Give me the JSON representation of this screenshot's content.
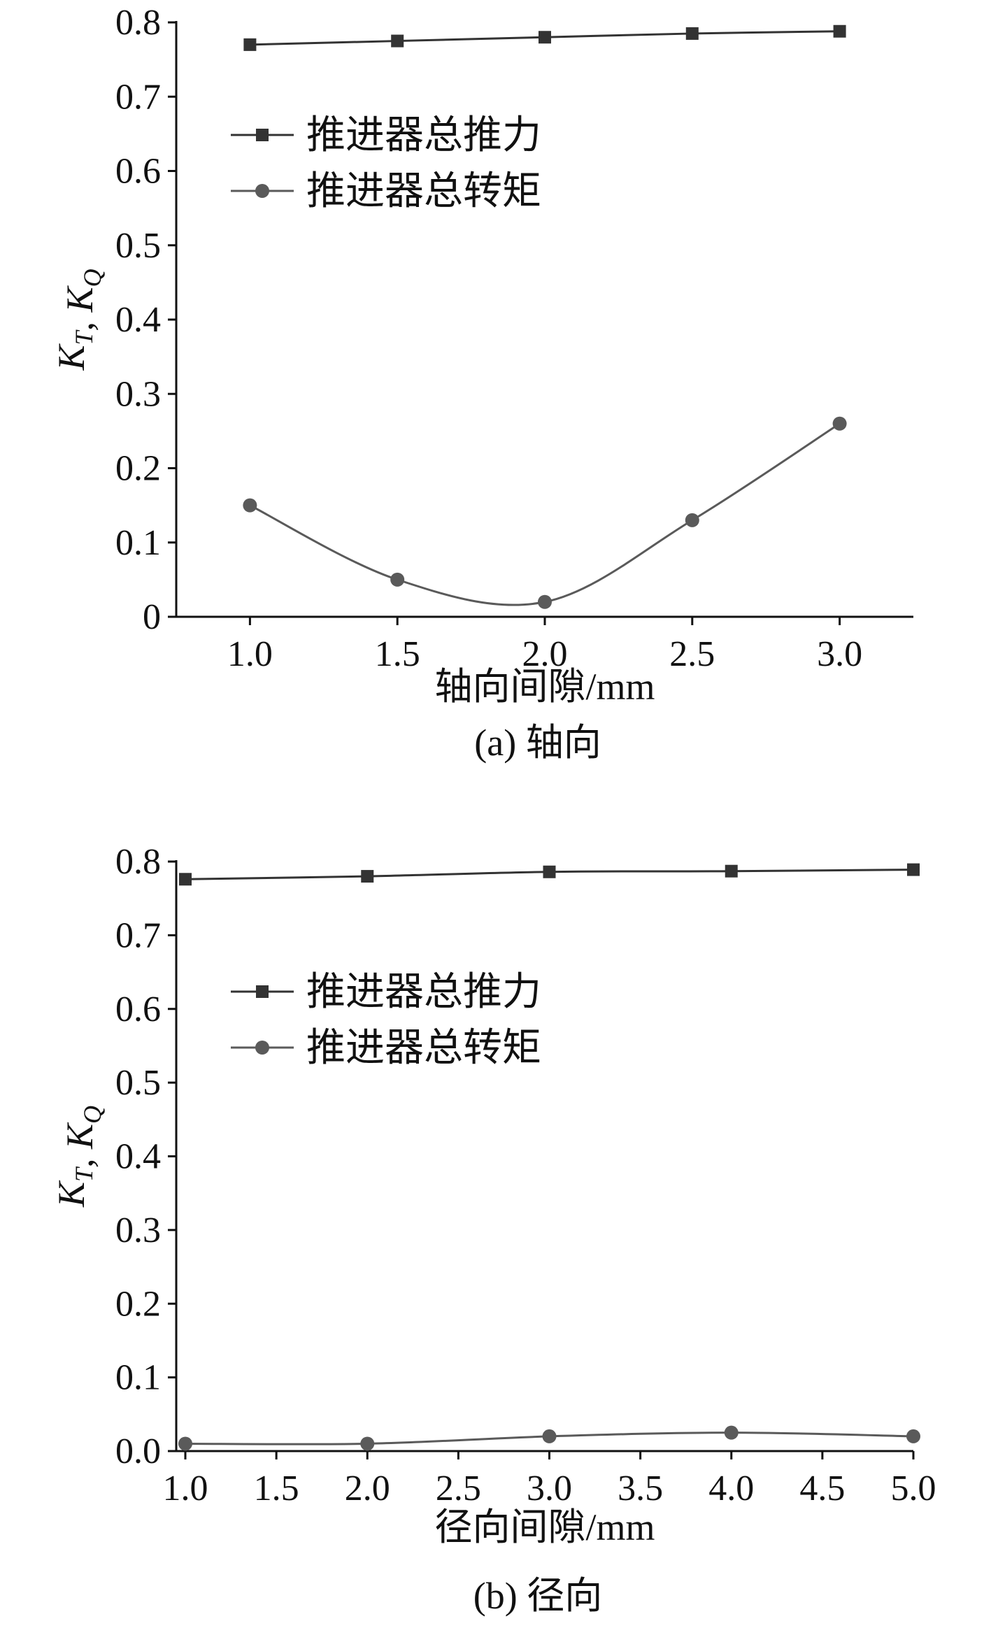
{
  "chart_data": [
    {
      "type": "line",
      "panel": "a",
      "caption": "(a) 轴向",
      "xlabel": "轴向间隙/mm",
      "ylabel": "K_T, K_Q",
      "xlim": [
        0.75,
        3.25
      ],
      "ylim": [
        0,
        0.8
      ],
      "x_ticks": [
        "1.0",
        "1.5",
        "2.0",
        "2.5",
        "3.0"
      ],
      "y_ticks": [
        "0",
        "0.1",
        "0.2",
        "0.3",
        "0.4",
        "0.5",
        "0.6",
        "0.7",
        "0.8"
      ],
      "x": [
        1.0,
        1.5,
        2.0,
        2.5,
        3.0
      ],
      "series": [
        {
          "name": "推进器总推力",
          "marker": "square",
          "color": "#333333",
          "values": [
            0.77,
            0.775,
            0.78,
            0.785,
            0.788
          ]
        },
        {
          "name": "推进器总转矩",
          "marker": "circle",
          "color": "#5a5a5a",
          "values": [
            0.15,
            0.05,
            0.02,
            0.13,
            0.26
          ]
        }
      ],
      "legend": "upper-left",
      "grid": false
    },
    {
      "type": "line",
      "panel": "b",
      "caption": "(b) 径向",
      "xlabel": "径向间隙/mm",
      "ylabel": "K_T, K_Q",
      "xlim": [
        0.95,
        5.0
      ],
      "ylim": [
        0,
        0.8
      ],
      "x_ticks": [
        "1.0",
        "1.5",
        "2.0",
        "2.5",
        "3.0",
        "3.5",
        "4.0",
        "4.5",
        "5.0"
      ],
      "y_ticks": [
        "0.0",
        "0.1",
        "0.2",
        "0.3",
        "0.4",
        "0.5",
        "0.6",
        "0.7",
        "0.8"
      ],
      "x": [
        1.0,
        2.0,
        3.0,
        4.0,
        5.0
      ],
      "series": [
        {
          "name": "推进器总推力",
          "marker": "square",
          "color": "#333333",
          "values": [
            0.776,
            0.78,
            0.786,
            0.787,
            0.789
          ]
        },
        {
          "name": "推进器总转矩",
          "marker": "circle",
          "color": "#5a5a5a",
          "values": [
            0.01,
            0.01,
            0.02,
            0.025,
            0.02
          ]
        }
      ],
      "legend": "upper-left",
      "grid": false
    }
  ]
}
